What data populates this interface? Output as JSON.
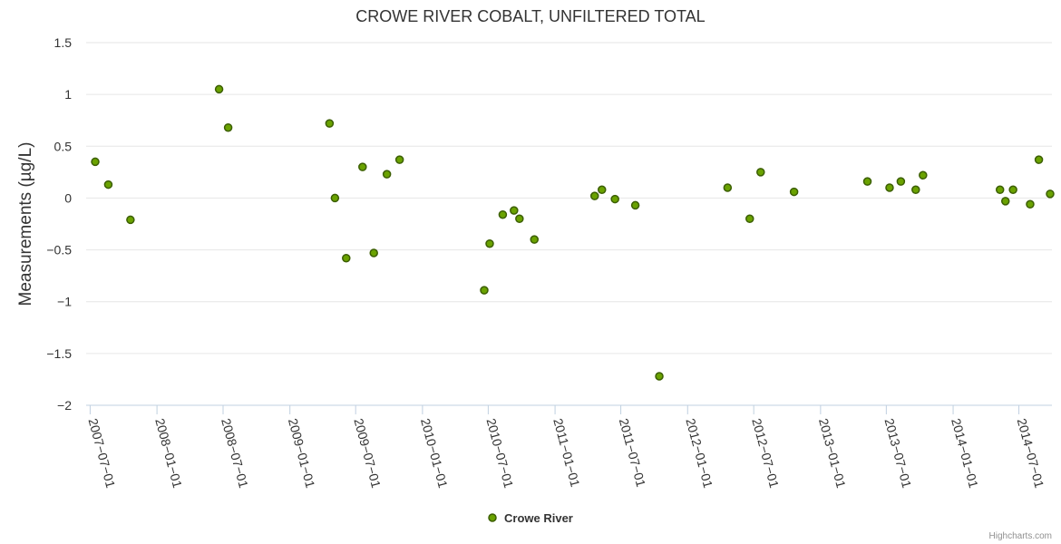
{
  "chart_data": {
    "type": "scatter",
    "title": "CROWE RIVER COBALT, UNFILTERED TOTAL",
    "xlabel": "",
    "ylabel": "Measurements (µg/L)",
    "ylim": [
      -2,
      1.5
    ],
    "y_ticks": [
      "1.5",
      "1",
      "0.5",
      "0",
      "−0.5",
      "−1",
      "−1.5",
      "−2"
    ],
    "y_tick_values": [
      1.5,
      1,
      0.5,
      0,
      -0.5,
      -1,
      -1.5,
      -2
    ],
    "xlim": [
      "2007-06-20",
      "2014-09-30"
    ],
    "x_ticks": [
      "2007-07-01",
      "2008-01-01",
      "2008-07-01",
      "2009-01-01",
      "2009-07-01",
      "2010-01-01",
      "2010-07-01",
      "2011-01-01",
      "2011-07-01",
      "2012-01-01",
      "2012-07-01",
      "2013-01-01",
      "2013-07-01",
      "2014-01-01",
      "2014-07-01"
    ],
    "legend": "bottom-center",
    "series": [
      {
        "name": "Crowe River",
        "color": "#6aa200",
        "points": [
          {
            "x": "2007-07-15",
            "y": 0.35
          },
          {
            "x": "2007-08-20",
            "y": 0.13
          },
          {
            "x": "2007-10-20",
            "y": -0.21
          },
          {
            "x": "2008-06-20",
            "y": 1.05
          },
          {
            "x": "2008-07-15",
            "y": 0.68
          },
          {
            "x": "2009-04-20",
            "y": 0.72
          },
          {
            "x": "2009-05-05",
            "y": 0.0
          },
          {
            "x": "2009-06-05",
            "y": -0.58
          },
          {
            "x": "2009-07-20",
            "y": 0.3
          },
          {
            "x": "2009-08-20",
            "y": -0.53
          },
          {
            "x": "2009-09-25",
            "y": 0.23
          },
          {
            "x": "2009-10-30",
            "y": 0.37
          },
          {
            "x": "2010-06-20",
            "y": -0.89
          },
          {
            "x": "2010-07-05",
            "y": -0.44
          },
          {
            "x": "2010-08-10",
            "y": -0.16
          },
          {
            "x": "2010-09-10",
            "y": -0.12
          },
          {
            "x": "2010-09-25",
            "y": -0.2
          },
          {
            "x": "2010-11-05",
            "y": -0.4
          },
          {
            "x": "2011-04-20",
            "y": 0.02
          },
          {
            "x": "2011-05-10",
            "y": 0.08
          },
          {
            "x": "2011-06-15",
            "y": -0.01
          },
          {
            "x": "2011-08-10",
            "y": -0.07
          },
          {
            "x": "2011-10-15",
            "y": -1.72
          },
          {
            "x": "2012-04-20",
            "y": 0.1
          },
          {
            "x": "2012-06-20",
            "y": -0.2
          },
          {
            "x": "2012-07-20",
            "y": 0.25
          },
          {
            "x": "2012-10-20",
            "y": 0.06
          },
          {
            "x": "2013-05-10",
            "y": 0.16
          },
          {
            "x": "2013-07-10",
            "y": 0.1
          },
          {
            "x": "2013-08-10",
            "y": 0.16
          },
          {
            "x": "2013-09-20",
            "y": 0.08
          },
          {
            "x": "2013-10-10",
            "y": 0.22
          },
          {
            "x": "2014-05-10",
            "y": 0.08
          },
          {
            "x": "2014-05-25",
            "y": -0.03
          },
          {
            "x": "2014-06-15",
            "y": 0.08
          },
          {
            "x": "2014-08-01",
            "y": -0.06
          },
          {
            "x": "2014-08-25",
            "y": 0.37
          },
          {
            "x": "2014-09-25",
            "y": 0.04
          }
        ]
      }
    ]
  },
  "credit": "Highcharts.com"
}
